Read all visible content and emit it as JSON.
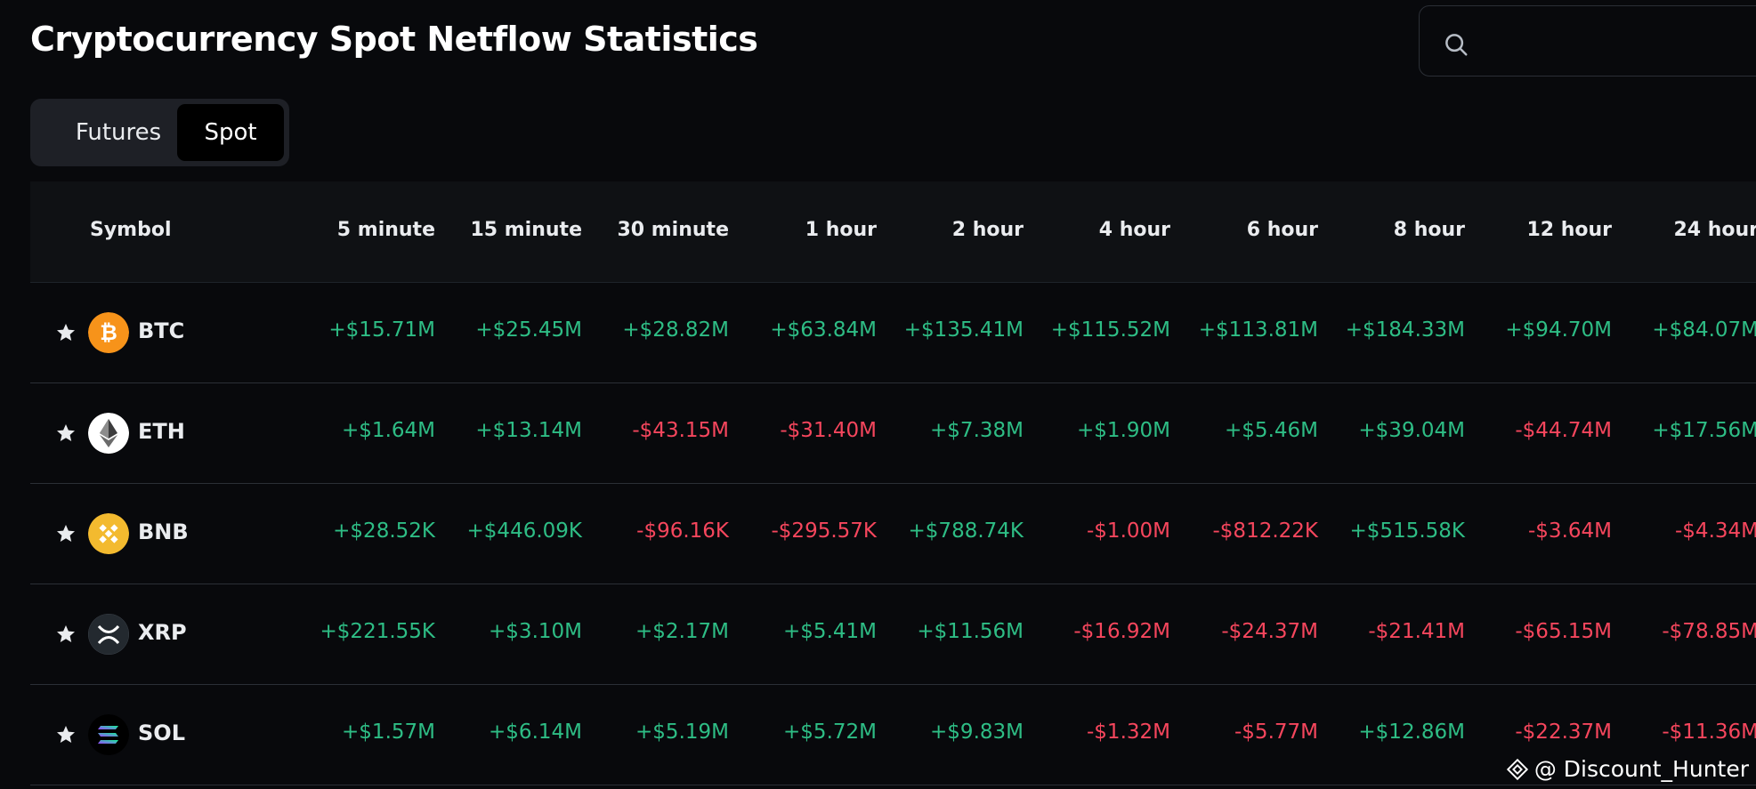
{
  "page": {
    "title": "Cryptocurrency Spot Netflow Statistics"
  },
  "search": {
    "value": "",
    "icon": "search-icon"
  },
  "market_toggle": {
    "options": [
      "Futures",
      "Spot"
    ],
    "selected": "Spot"
  },
  "table": {
    "columns": [
      "Symbol",
      "5 minute",
      "15 minute",
      "30 minute",
      "1 hour",
      "2 hour",
      "4 hour",
      "6 hour",
      "8 hour",
      "12 hour",
      "24 hour"
    ],
    "rows": [
      {
        "symbol": "BTC",
        "logo_color": "#f7931a",
        "favorite_icon": "star-icon",
        "values": [
          "+$15.71M",
          "+$25.45M",
          "+$28.82M",
          "+$63.84M",
          "+$135.41M",
          "+$115.52M",
          "+$113.81M",
          "+$184.33M",
          "+$94.70M",
          "+$84.07M"
        ]
      },
      {
        "symbol": "ETH",
        "logo_color": "#ffffff",
        "favorite_icon": "star-icon",
        "values": [
          "+$1.64M",
          "+$13.14M",
          "-$43.15M",
          "-$31.40M",
          "+$7.38M",
          "+$1.90M",
          "+$5.46M",
          "+$39.04M",
          "-$44.74M",
          "+$17.56M"
        ]
      },
      {
        "symbol": "BNB",
        "logo_color": "#f3ba2f",
        "favorite_icon": "star-icon",
        "values": [
          "+$28.52K",
          "+$446.09K",
          "-$96.16K",
          "-$295.57K",
          "+$788.74K",
          "-$1.00M",
          "-$812.22K",
          "+$515.58K",
          "-$3.64M",
          "-$4.34M"
        ]
      },
      {
        "symbol": "XRP",
        "logo_color": "#23292f",
        "favorite_icon": "star-icon",
        "values": [
          "+$221.55K",
          "+$3.10M",
          "+$2.17M",
          "+$5.41M",
          "+$11.56M",
          "-$16.92M",
          "-$24.37M",
          "-$21.41M",
          "-$65.15M",
          "-$78.85M"
        ]
      },
      {
        "symbol": "SOL",
        "logo_color": "#000000",
        "favorite_icon": "star-icon",
        "values": [
          "+$1.57M",
          "+$6.14M",
          "+$5.19M",
          "+$5.72M",
          "+$9.83M",
          "-$1.32M",
          "-$5.77M",
          "+$12.86M",
          "-$22.37M",
          "-$11.36M"
        ]
      }
    ]
  },
  "colors": {
    "positive": "#2ebd85",
    "negative": "#f6465d",
    "background": "#08090c"
  },
  "watermark": {
    "text": "@ Discount_Hunter"
  }
}
